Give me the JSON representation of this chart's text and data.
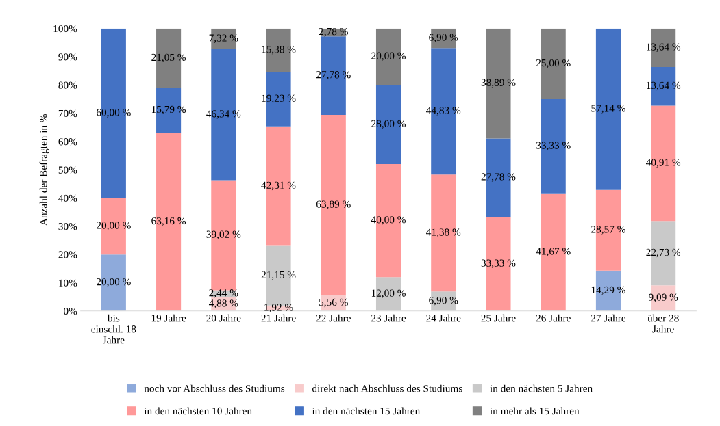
{
  "chart_data": {
    "type": "bar",
    "stacked": true,
    "ylabel": "Anzahl der Befragten in %",
    "categories": [
      "bis\neinschl. 18\nJahre",
      "19 Jahre",
      "20 Jahre",
      "21 Jahre",
      "22 Jahre",
      "23 Jahre",
      "24 Jahre",
      "25 Jahre",
      "26 Jahre",
      "27 Jahre",
      "über 28\nJahre"
    ],
    "ylim": [
      0,
      100
    ],
    "yticks": [
      {
        "value": 0,
        "label": "0%"
      },
      {
        "value": 10,
        "label": "10%"
      },
      {
        "value": 20,
        "label": "20%"
      },
      {
        "value": 30,
        "label": "30%"
      },
      {
        "value": 40,
        "label": "40%"
      },
      {
        "value": 50,
        "label": "50%"
      },
      {
        "value": 60,
        "label": "60%"
      },
      {
        "value": 70,
        "label": "70%"
      },
      {
        "value": 80,
        "label": "80%"
      },
      {
        "value": 90,
        "label": "90%"
      },
      {
        "value": 100,
        "label": "100%"
      }
    ],
    "grid": false,
    "legend": "bottom",
    "series": [
      {
        "name": "noch vor Abschluss des Studiums",
        "color": "#8eaadb",
        "values": [
          20.0,
          null,
          null,
          null,
          null,
          null,
          null,
          null,
          null,
          14.29,
          null
        ],
        "value_labels": [
          "20,00 %",
          null,
          null,
          null,
          null,
          null,
          null,
          null,
          null,
          "14,29 %",
          null
        ]
      },
      {
        "name": "direkt nach Abschluss des Studiums",
        "color": "#f8cbcb",
        "values": [
          null,
          null,
          4.88,
          1.92,
          5.56,
          null,
          null,
          null,
          null,
          null,
          9.09
        ],
        "value_labels": [
          null,
          null,
          "4,88 %",
          "1,92 %",
          "5,56 %",
          null,
          null,
          null,
          null,
          null,
          "9,09 %"
        ]
      },
      {
        "name": "in den nächsten 5 Jahren",
        "color": "#c9c9c9",
        "values": [
          null,
          null,
          2.44,
          21.15,
          null,
          12.0,
          6.9,
          null,
          null,
          null,
          22.73
        ],
        "value_labels": [
          null,
          null,
          "2,44 %",
          "21,15 %",
          null,
          "12,00 %",
          "6,90 %",
          null,
          null,
          null,
          "22,73 %"
        ]
      },
      {
        "name": "in den nächsten 10 Jahren",
        "color": "#ff9999",
        "values": [
          20.0,
          63.16,
          39.02,
          42.31,
          63.89,
          40.0,
          41.38,
          33.33,
          41.67,
          28.57,
          40.91
        ],
        "value_labels": [
          "20,00 %",
          "63,16 %",
          "39,02 %",
          "42,31 %",
          "63,89 %",
          "40,00 %",
          "41,38 %",
          "33,33 %",
          "41,67 %",
          "28,57 %",
          "40,91 %"
        ]
      },
      {
        "name": "in den nächsten 15 Jahren",
        "color": "#4472c4",
        "values": [
          60.0,
          15.79,
          46.34,
          19.23,
          27.78,
          28.0,
          44.83,
          27.78,
          33.33,
          57.14,
          13.64
        ],
        "value_labels": [
          "60,00 %",
          "15,79 %",
          "46,34 %",
          "19,23 %",
          "27,78 %",
          "28,00 %",
          "44,83 %",
          "27,78 %",
          "33,33 %",
          "57,14 %",
          "13,64 %"
        ]
      },
      {
        "name": "in mehr als 15 Jahren",
        "color": "#808080",
        "values": [
          null,
          21.05,
          7.32,
          15.38,
          2.78,
          20.0,
          6.9,
          38.89,
          25.0,
          null,
          13.64
        ],
        "value_labels": [
          null,
          "21,05 %",
          "7,32 %",
          "15,38 %",
          "2,78 %",
          "20,00 %",
          "6,90 %",
          "38,89 %",
          "25,00 %",
          null,
          "13,64 %"
        ]
      }
    ]
  }
}
